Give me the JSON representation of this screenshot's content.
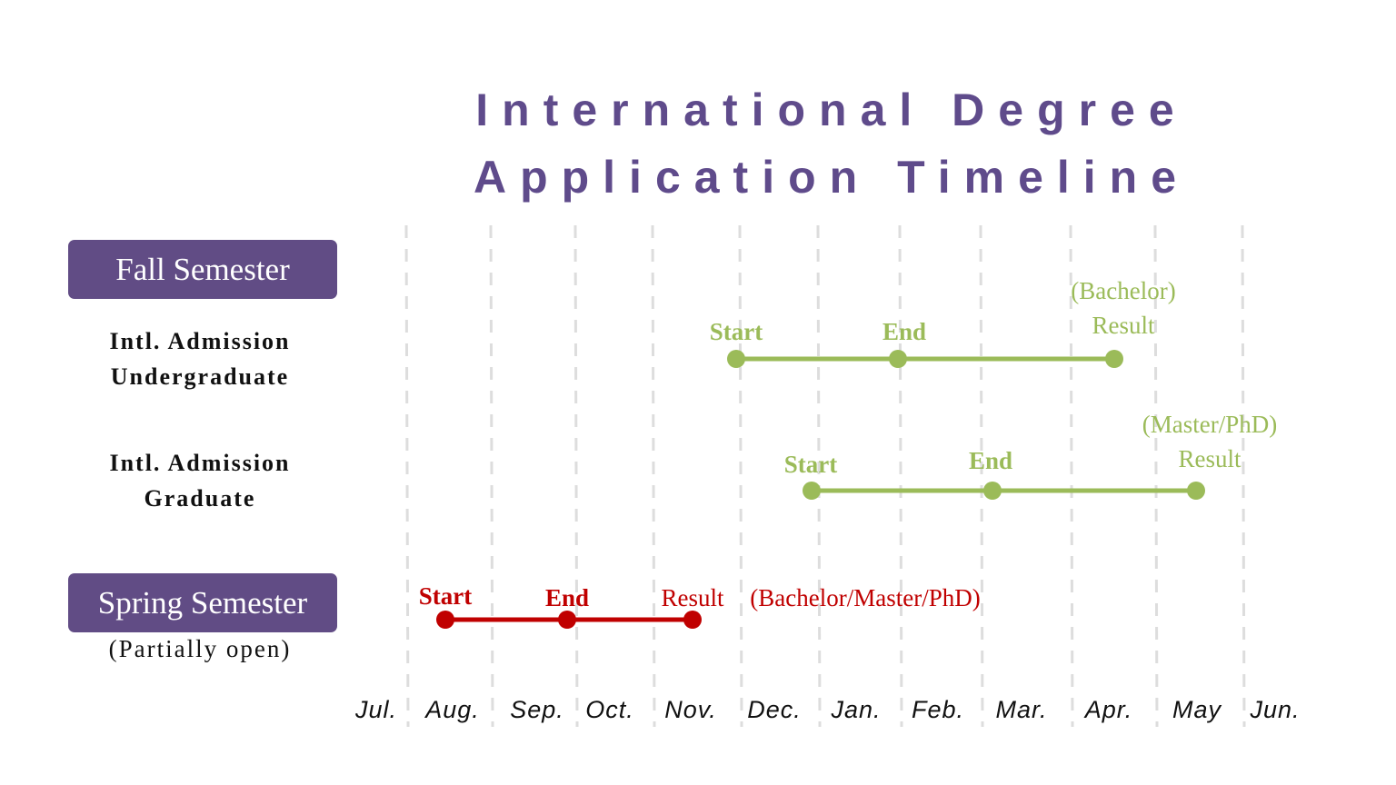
{
  "title": {
    "line1": "International Degree",
    "line2": "Application Timeline"
  },
  "colors": {
    "title": "#5f4b8b",
    "pill": "#614c85",
    "fall": "#9bbb59",
    "spring": "#c00000",
    "grid": "#dddddd"
  },
  "months": [
    "Jul.",
    "Aug.",
    "Sep.",
    "Oct.",
    "Nov.",
    "Dec.",
    "Jan.",
    "Feb.",
    "Mar.",
    "Apr.",
    "May",
    "Jun."
  ],
  "fall": {
    "label": "Fall Semester",
    "rows": [
      {
        "line1": "Intl. Admission",
        "line2": "Undergraduate",
        "start": "Start",
        "end": "End",
        "result_note": "(Bachelor)",
        "result": "Result"
      },
      {
        "line1": "Intl. Admission",
        "line2": "Graduate",
        "start": "Start",
        "end": "End",
        "result_note": "(Master/PhD)",
        "result": "Result"
      }
    ]
  },
  "spring": {
    "label": "Spring Semester",
    "note": "(Partially open)",
    "start": "Start",
    "end": "End",
    "result": "Result",
    "result_note": "(Bachelor/Master/PhD)"
  }
}
